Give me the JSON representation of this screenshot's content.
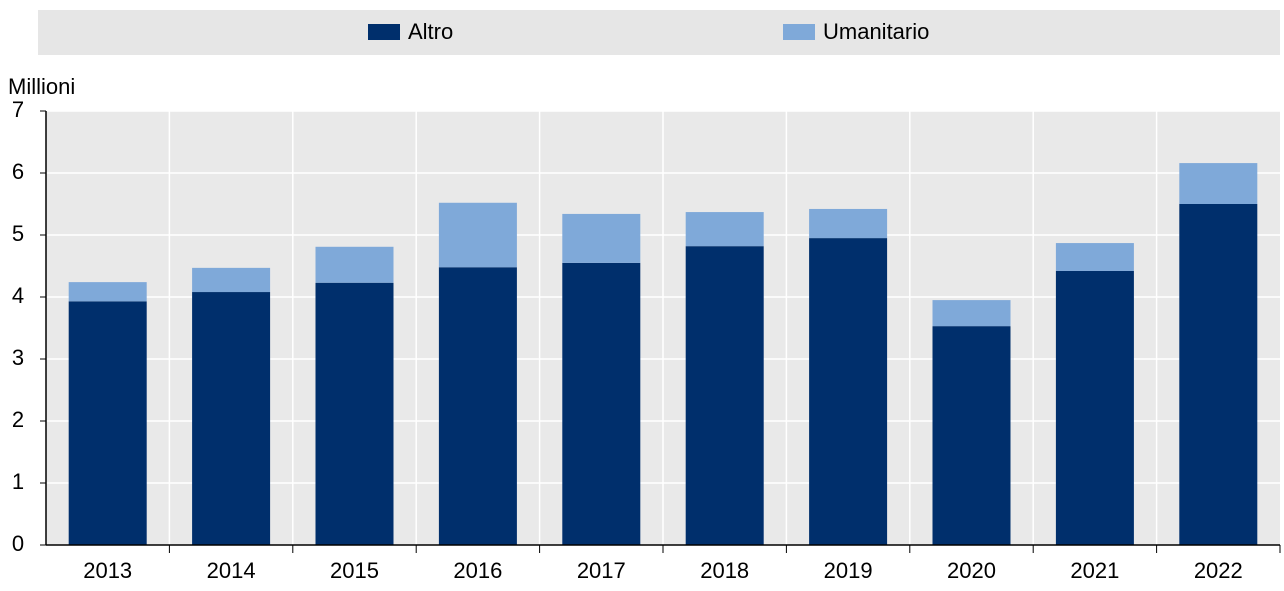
{
  "chart_data": {
    "type": "stacked_bar",
    "y_axis_label": "Millioni",
    "categories": [
      "2013",
      "2014",
      "2015",
      "2016",
      "2017",
      "2018",
      "2019",
      "2020",
      "2021",
      "2022"
    ],
    "series": [
      {
        "name": "Altro",
        "color": "#002f6c",
        "values": [
          3.93,
          4.08,
          4.23,
          4.48,
          4.55,
          4.82,
          4.95,
          3.53,
          4.42,
          5.5
        ]
      },
      {
        "name": "Umanitario",
        "color": "#7fa9d9",
        "values": [
          0.31,
          0.39,
          0.58,
          1.04,
          0.79,
          0.55,
          0.47,
          0.42,
          0.45,
          0.66
        ]
      }
    ],
    "ylim": [
      0,
      7
    ],
    "yticks": [
      0,
      1,
      2,
      3,
      4,
      5,
      6,
      7
    ],
    "grid": true
  }
}
